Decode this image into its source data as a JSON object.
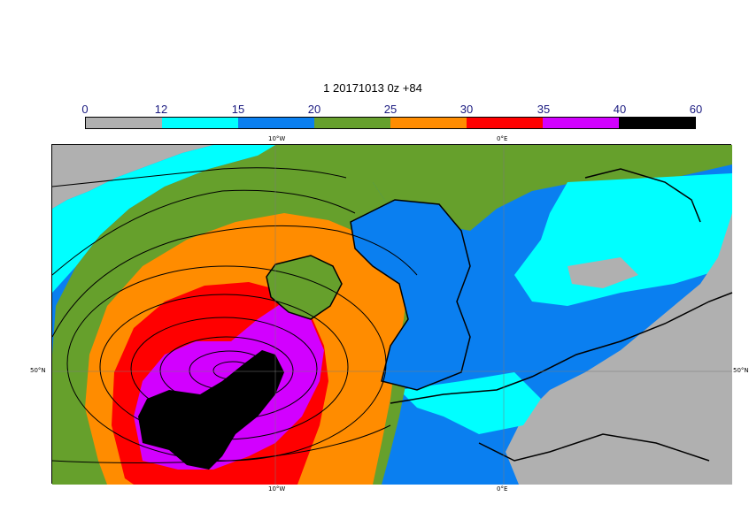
{
  "title": "1 20171013 0z +84",
  "colorbar": {
    "labels": [
      "0",
      "12",
      "15",
      "20",
      "25",
      "30",
      "35",
      "40",
      "60"
    ],
    "bands": [
      {
        "from": 0,
        "to": 12,
        "color": "#b0b0b0"
      },
      {
        "from": 12,
        "to": 15,
        "color": "#00ffff"
      },
      {
        "from": 15,
        "to": 20,
        "color": "#0a7ff0"
      },
      {
        "from": 20,
        "to": 25,
        "color": "#66a02c"
      },
      {
        "from": 25,
        "to": 30,
        "color": "#ff8c00"
      },
      {
        "from": 30,
        "to": 35,
        "color": "#ff0000"
      },
      {
        "from": 35,
        "to": 40,
        "color": "#d200ff"
      },
      {
        "from": 40,
        "to": 60,
        "color": "#000000"
      }
    ]
  },
  "axes": {
    "top_lon_10w": "10°W",
    "top_lon_0e": "0°E",
    "bottom_lon_10w": "10°W",
    "bottom_lon_0e": "0°E",
    "left_lat": "50°N",
    "right_lat": "50°N"
  }
}
